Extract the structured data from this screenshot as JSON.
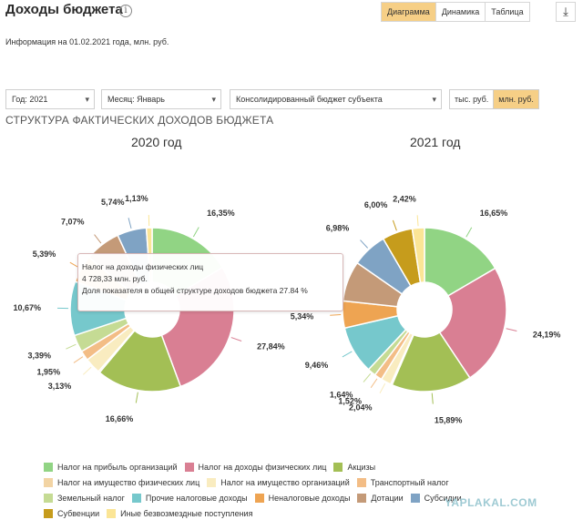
{
  "header": {
    "title": "Доходы бюджета",
    "info_icon": "i",
    "tabs": [
      {
        "label": "Диаграмма",
        "active": true
      },
      {
        "label": "Динамика",
        "active": false
      },
      {
        "label": "Таблица",
        "active": false
      }
    ],
    "download_icon": "⤓"
  },
  "subinfo": "Информация на 01.02.2021 года, млн. руб.",
  "filters": {
    "year": "Год: 2021",
    "month": "Месяц: Январь",
    "budget": "Консолидированный бюджет субъекта",
    "units": [
      {
        "label": "тыс. руб.",
        "active": false
      },
      {
        "label": "млн. руб.",
        "active": true
      }
    ]
  },
  "section_title": "СТРУКТУРА ФАКТИЧЕСКИХ ДОХОДОВ БЮДЖЕТА",
  "tooltip": {
    "line1": "Налог на доходы физических лиц",
    "line2": "4 728,33 млн. руб.",
    "line3": "Доля показателя в общей структуре доходов бюджета 27.84 %"
  },
  "legend": [
    [
      {
        "label": "Налог на прибыль организаций",
        "color": "#91d484"
      },
      {
        "label": "Налог на доходы физических лиц",
        "color": "#d97f93"
      },
      {
        "label": "Акцизы",
        "color": "#a3bf55"
      }
    ],
    [
      {
        "label": "Налог на имущество физических лиц",
        "color": "#f2d4a4"
      },
      {
        "label": "Налог на имущество организаций",
        "color": "#f9ecc0"
      },
      {
        "label": "Транспортный налог",
        "color": "#f3bd86"
      }
    ],
    [
      {
        "label": "Земельный налог",
        "color": "#c5db94"
      },
      {
        "label": "Прочие налоговые доходы",
        "color": "#76c8cc"
      },
      {
        "label": "Неналоговые доходы",
        "color": "#eea452"
      },
      {
        "label": "Дотации",
        "color": "#c49a78"
      },
      {
        "label": "Субсидии",
        "color": "#7fa3c4"
      }
    ],
    [
      {
        "label": "Субвенции",
        "color": "#c69c1c"
      },
      {
        "label": "Иные безвозмездные поступления",
        "color": "#fbe596"
      }
    ]
  ],
  "watermark": "YAPLAKAL.COM",
  "chart_data": [
    {
      "type": "pie",
      "title": "2020 год",
      "categories": [
        "Налог на прибыль организаций",
        "Налог на доходы физических лиц",
        "Акцизы",
        "Налог на имущество физических лиц",
        "Налог на имущество организаций",
        "Транспортный налог",
        "Земельный налог",
        "Прочие налоговые доходы",
        "Неналоговые доходы",
        "Дотации",
        "Субсидии",
        "Субвенции",
        "Иные безвозмездные поступления"
      ],
      "values": [
        16.35,
        27.84,
        16.66,
        0.3,
        3.13,
        1.95,
        3.39,
        10.67,
        5.39,
        7.07,
        5.74,
        null,
        1.13
      ],
      "labels": [
        "16,35%",
        "27,84%",
        "16,66%",
        "",
        "3,13%",
        "1,95%",
        "3,39%",
        "10,67%",
        "5,39%",
        "7,07%",
        "5,74%",
        "",
        "1,13%"
      ]
    },
    {
      "type": "pie",
      "title": "2021 год",
      "categories": [
        "Налог на прибыль организаций",
        "Налог на доходы физических лиц",
        "Акцизы",
        "Налог на имущество физических лиц",
        "Налог на имущество организаций",
        "Транспортный налог",
        "Земельный налог",
        "Прочие налоговые доходы",
        "Неналоговые доходы",
        "Дотации",
        "Субсидии",
        "Субвенции",
        "Иные безвозмездные поступления"
      ],
      "values": [
        16.65,
        24.19,
        15.89,
        0.3,
        2.04,
        1.52,
        1.64,
        9.46,
        5.34,
        8.0,
        6.98,
        6.0,
        2.42
      ],
      "labels": [
        "16,65%",
        "24,19%",
        "15,89%",
        "",
        "2,04%",
        "1,52%",
        "1,64%",
        "9,46%",
        "5,34%",
        "",
        "6,98%",
        "6,00%",
        "2,42%"
      ]
    }
  ]
}
